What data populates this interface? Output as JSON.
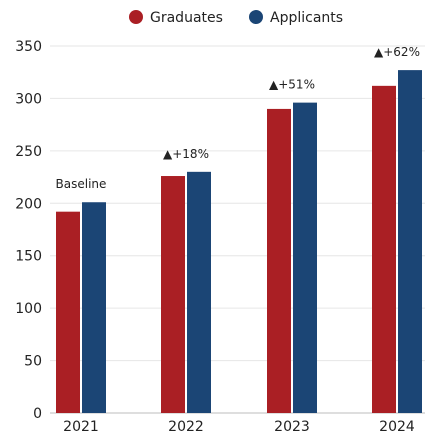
{
  "chart_data": {
    "type": "bar",
    "categories": [
      "2021",
      "2022",
      "2023",
      "2024"
    ],
    "series": [
      {
        "name": "Graduates",
        "color": "#aa1f24",
        "values": [
          192,
          226,
          290,
          312
        ]
      },
      {
        "name": "Applicants",
        "color": "#1b4575",
        "values": [
          201,
          230,
          296,
          327
        ]
      }
    ],
    "annotations": [
      "Baseline",
      "▲+18%",
      "▲+51%",
      "▲+62%"
    ],
    "ylim": [
      0,
      350
    ],
    "yticks": [
      0,
      50,
      100,
      150,
      200,
      250,
      300,
      350
    ],
    "grid": true,
    "legend": "top-center"
  }
}
